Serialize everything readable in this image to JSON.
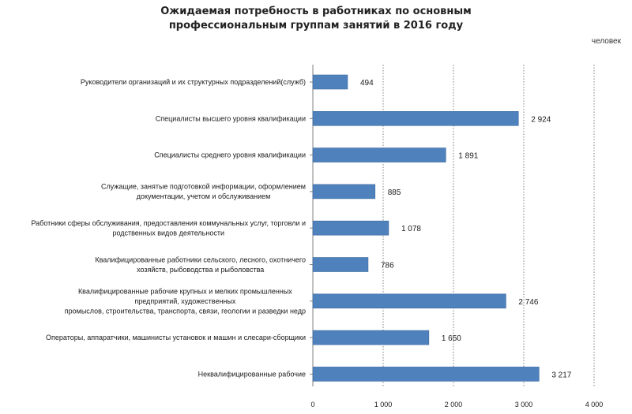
{
  "title_lines": [
    "Ожидаемая потребность в работниках  по основным",
    "профессиональным  группам занятий в 2016 году"
  ],
  "unit_label": "человек",
  "chart_data": {
    "type": "bar",
    "orientation": "horizontal",
    "title": "Ожидаемая потребность в работниках  по основным профессиональным  группам занятий в 2016 году",
    "xlim": [
      0,
      4000
    ],
    "xticks": [
      0,
      1000,
      2000,
      3000,
      4000
    ],
    "xtick_labels": [
      "0",
      "1 000",
      "2 000",
      "3 000",
      "4 000"
    ],
    "grid": "vertical-dotted",
    "bar_color": "#4f81bd",
    "categories": [
      [
        "Руководители организаций и их структурных подразделений(служб)"
      ],
      [
        "Специалисты высшего уровня квалификации"
      ],
      [
        "Специалисты среднего уровня квалификации"
      ],
      [
        "Служащие, занятые подготовкой информации, оформлением",
        "документации, учетом и обслуживанием"
      ],
      [
        "Работники сферы обслуживания, предоставления коммунальных услуг, торговли и",
        "родственных видов деятельности"
      ],
      [
        "Квалифицированные работники сельского, лесного, охотничего",
        "хозяйств, рыбоводства и рыболовства"
      ],
      [
        "Квалифицированные рабочие крупных и мелких промышленных",
        "предприятий, художественных",
        "промыслов, строительства, транспорта, связи, геологии и разведки недр"
      ],
      [
        "Операторы, аппаратчики, машинисты установок и машин и слесари-сборщики"
      ],
      [
        "Неквалифицированные рабочие"
      ]
    ],
    "values": [
      494,
      2924,
      1891,
      885,
      1078,
      786,
      2746,
      1650,
      3217
    ],
    "value_labels": [
      "494",
      "2 924",
      "1 891",
      "885",
      "1 078",
      "786",
      "2 746",
      "1 650",
      "3 217"
    ]
  }
}
